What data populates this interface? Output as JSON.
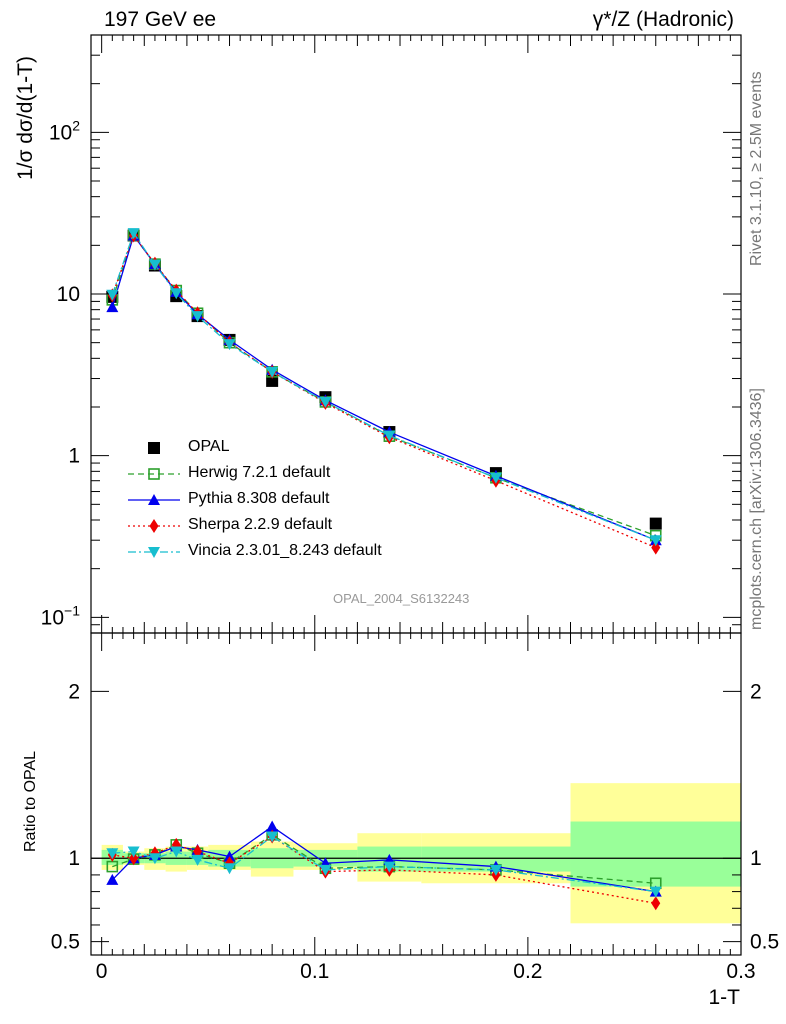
{
  "header": {
    "left": "197 GeV ee",
    "right": "γ*/Z (Hadronic)"
  },
  "side_text": {
    "rivet": "Rivet 3.1.10, ≥ 2.5M events",
    "site": "mcplots.cern.ch [arXiv:1306.3436]"
  },
  "watermark": "OPAL_2004_S6132243",
  "chart_data": [
    {
      "type": "scatter",
      "panel": "main",
      "ylabel": "1/σ dσ/d(1-T)",
      "yscale": "log",
      "ylim": [
        0.08,
        400
      ],
      "xlim": [
        -0.005,
        0.3
      ],
      "ytick_labels": [
        "10^-1",
        "1",
        "10",
        "10^2"
      ],
      "grid": false,
      "legend": "inside, lower-left",
      "x": [
        0.005,
        0.015,
        0.025,
        0.035,
        0.045,
        0.06,
        0.08,
        0.105,
        0.135,
        0.185,
        0.26
      ],
      "series": [
        {
          "name": "OPAL",
          "color": "#000000",
          "marker": "square-filled",
          "line": "none",
          "values": [
            9.6,
            23.0,
            15.0,
            9.7,
            7.3,
            5.2,
            2.9,
            2.3,
            1.4,
            0.78,
            0.38
          ]
        },
        {
          "name": "Herwig 7.2.1 default",
          "color": "#2ca02c",
          "marker": "square-open",
          "line": "dashed",
          "values": [
            9.2,
            23.0,
            15.3,
            10.5,
            7.6,
            5.0,
            3.3,
            2.15,
            1.32,
            0.73,
            0.32
          ]
        },
        {
          "name": "Pythia 8.308 default",
          "color": "#0000ee",
          "marker": "triangle-up",
          "line": "solid",
          "values": [
            8.3,
            23.0,
            15.3,
            10.3,
            7.5,
            5.2,
            3.4,
            2.2,
            1.4,
            0.75,
            0.3
          ]
        },
        {
          "name": "Sherpa 2.2.9 default",
          "color": "#ee0000",
          "marker": "diamond",
          "line": "dotted",
          "values": [
            9.8,
            23.0,
            15.4,
            10.5,
            7.6,
            5.0,
            3.3,
            2.12,
            1.3,
            0.7,
            0.27
          ]
        },
        {
          "name": "Vincia 2.3.01_8.243 default",
          "color": "#17becf",
          "marker": "triangle-down",
          "line": "dash-dot",
          "values": [
            9.9,
            23.8,
            15.2,
            10.1,
            7.3,
            4.9,
            3.3,
            2.15,
            1.33,
            0.73,
            0.3
          ]
        }
      ]
    },
    {
      "type": "scatter",
      "panel": "ratio",
      "ylabel": "Ratio to OPAL",
      "xlabel": "1-T",
      "ylim": [
        0.42,
        2.35
      ],
      "xlim": [
        -0.005,
        0.3
      ],
      "ytick_labels": [
        "0.5",
        "1",
        "2"
      ],
      "xtick_labels": [
        "0",
        "0.1",
        "0.2",
        "0.3"
      ],
      "xticks": [
        0,
        0.1,
        0.2,
        0.3
      ],
      "bands": {
        "bin_edges": [
          0.0,
          0.01,
          0.02,
          0.03,
          0.04,
          0.05,
          0.07,
          0.09,
          0.12,
          0.15,
          0.22,
          0.3
        ],
        "inner_color": "#99ff99",
        "outer_color": "#ffff99",
        "inner": [
          [
            0.96,
            1.05
          ],
          [
            0.97,
            1.03
          ],
          [
            0.97,
            1.03
          ],
          [
            0.96,
            1.04
          ],
          [
            0.96,
            1.04
          ],
          [
            0.95,
            1.05
          ],
          [
            0.94,
            1.06
          ],
          [
            0.95,
            1.05
          ],
          [
            0.92,
            1.07
          ],
          [
            0.92,
            1.07
          ],
          [
            0.83,
            1.22
          ]
        ],
        "outer": [
          [
            0.93,
            1.08
          ],
          [
            0.96,
            1.04
          ],
          [
            0.93,
            1.06
          ],
          [
            0.92,
            1.07
          ],
          [
            0.93,
            1.07
          ],
          [
            0.93,
            1.08
          ],
          [
            0.89,
            1.1
          ],
          [
            0.93,
            1.09
          ],
          [
            0.86,
            1.15
          ],
          [
            0.85,
            1.15
          ],
          [
            0.61,
            1.45
          ]
        ]
      },
      "x": [
        0.005,
        0.015,
        0.025,
        0.035,
        0.045,
        0.06,
        0.08,
        0.105,
        0.135,
        0.185,
        0.26
      ],
      "series": [
        {
          "name": "Herwig 7.2.1 default",
          "color": "#2ca02c",
          "marker": "square-open",
          "line": "dashed",
          "values": [
            0.95,
            0.995,
            1.02,
            1.08,
            1.03,
            0.97,
            1.14,
            0.94,
            0.95,
            0.93,
            0.85
          ]
        },
        {
          "name": "Pythia 8.308 default",
          "color": "#0000ee",
          "marker": "triangle-up",
          "line": "solid",
          "values": [
            0.87,
            1.0,
            1.02,
            1.07,
            1.05,
            1.01,
            1.19,
            0.97,
            0.99,
            0.95,
            0.8
          ]
        },
        {
          "name": "Sherpa 2.2.9 default",
          "color": "#ee0000",
          "marker": "diamond",
          "line": "dotted",
          "values": [
            1.02,
            1.0,
            1.03,
            1.08,
            1.04,
            0.97,
            1.13,
            0.92,
            0.93,
            0.9,
            0.73
          ]
        },
        {
          "name": "Vincia 2.3.01_8.243 default",
          "color": "#17becf",
          "marker": "triangle-down",
          "line": "dash-dot",
          "values": [
            1.03,
            1.04,
            1.0,
            1.04,
            0.99,
            0.94,
            1.13,
            0.93,
            0.95,
            0.93,
            0.8
          ]
        }
      ]
    }
  ]
}
